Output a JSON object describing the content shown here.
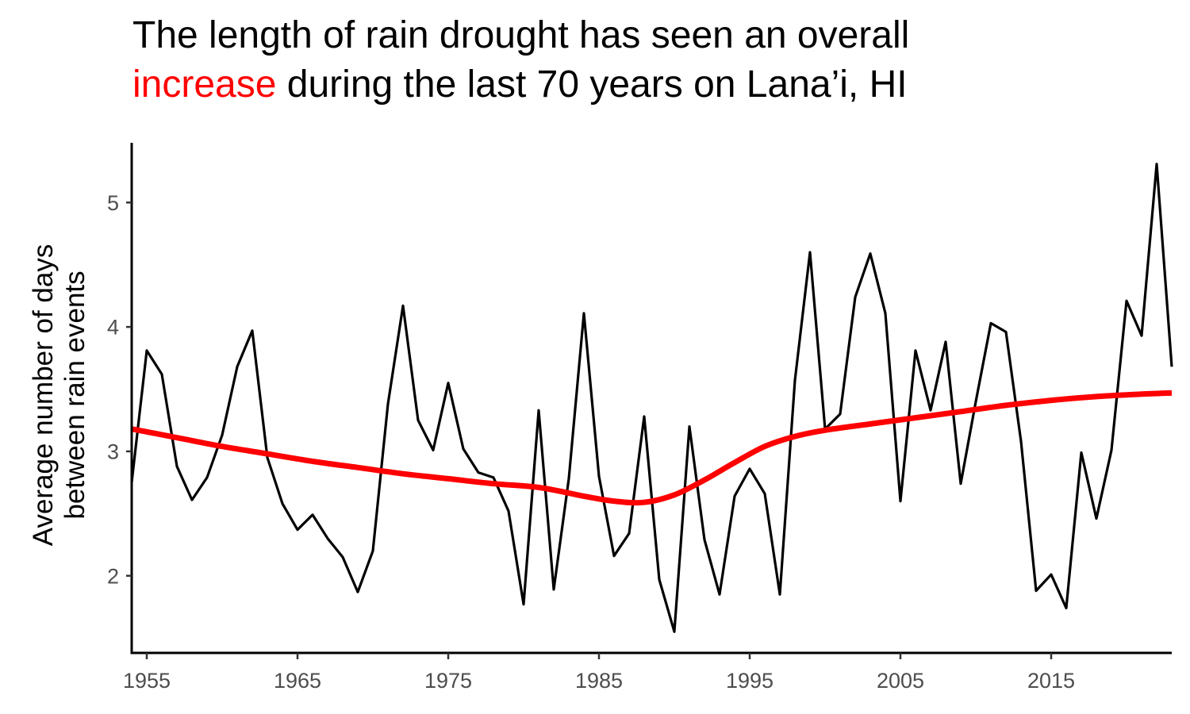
{
  "title": {
    "line1": "The length of rain drought has seen an overall",
    "highlight": "increase",
    "line2_rest": " during the last 70 years on Lana’i, HI"
  },
  "colors": {
    "raw_line": "#000000",
    "trend_line": "#ff0000",
    "highlight": "#ff0000",
    "tick_text": "#4d4d4d"
  },
  "chart_data": {
    "type": "line",
    "xlabel": "",
    "ylabel_lines": [
      "Average number of days",
      "between rain events"
    ],
    "xlim": [
      1954,
      2023
    ],
    "ylim": [
      1.38,
      5.48
    ],
    "x_ticks": [
      1955,
      1965,
      1975,
      1985,
      1995,
      2005,
      2015
    ],
    "y_ticks": [
      2,
      3,
      4,
      5
    ],
    "grid": false,
    "legend": "none",
    "series": [
      {
        "role": "observed",
        "x": [
          1954,
          1955,
          1956,
          1957,
          1958,
          1959,
          1960,
          1961,
          1962,
          1963,
          1964,
          1965,
          1966,
          1967,
          1968,
          1969,
          1970,
          1971,
          1972,
          1973,
          1974,
          1975,
          1976,
          1977,
          1978,
          1979,
          1980,
          1981,
          1982,
          1983,
          1984,
          1985,
          1986,
          1987,
          1988,
          1989,
          1990,
          1991,
          1992,
          1993,
          1994,
          1995,
          1996,
          1997,
          1998,
          1999,
          2000,
          2001,
          2002,
          2003,
          2004,
          2005,
          2006,
          2007,
          2008,
          2009,
          2010,
          2011,
          2012,
          2013,
          2014,
          2015,
          2016,
          2017,
          2018,
          2019,
          2020,
          2021,
          2022,
          2023
        ],
        "y": [
          2.75,
          3.81,
          3.62,
          2.88,
          2.61,
          2.79,
          3.13,
          3.68,
          3.97,
          2.95,
          2.58,
          2.37,
          2.49,
          2.3,
          2.15,
          1.87,
          2.2,
          3.38,
          4.17,
          3.25,
          3.01,
          3.55,
          3.02,
          2.83,
          2.79,
          2.52,
          1.77,
          3.33,
          1.89,
          2.78,
          4.11,
          2.8,
          2.16,
          2.34,
          3.28,
          1.97,
          1.55,
          3.2,
          2.29,
          1.85,
          2.64,
          2.86,
          2.66,
          1.85,
          3.57,
          4.6,
          3.18,
          3.3,
          4.24,
          4.59,
          4.11,
          2.6,
          3.81,
          3.33,
          3.88,
          2.74,
          3.4,
          4.03,
          3.96,
          3.08,
          1.88,
          2.01,
          1.74,
          2.99,
          2.46,
          3.01,
          4.21,
          3.93,
          5.31,
          3.68
        ]
      },
      {
        "role": "smoothed trend",
        "x": [
          1954,
          1957,
          1960,
          1963,
          1966,
          1969,
          1972,
          1975,
          1978,
          1981,
          1984,
          1986,
          1988,
          1990,
          1992,
          1994,
          1996,
          1998,
          2000,
          2003,
          2006,
          2009,
          2012,
          2015,
          2018,
          2021,
          2023
        ],
        "y": [
          3.18,
          3.11,
          3.04,
          2.98,
          2.92,
          2.87,
          2.82,
          2.78,
          2.74,
          2.71,
          2.64,
          2.6,
          2.59,
          2.65,
          2.77,
          2.91,
          3.04,
          3.12,
          3.17,
          3.22,
          3.27,
          3.32,
          3.37,
          3.41,
          3.44,
          3.46,
          3.47
        ]
      }
    ]
  }
}
